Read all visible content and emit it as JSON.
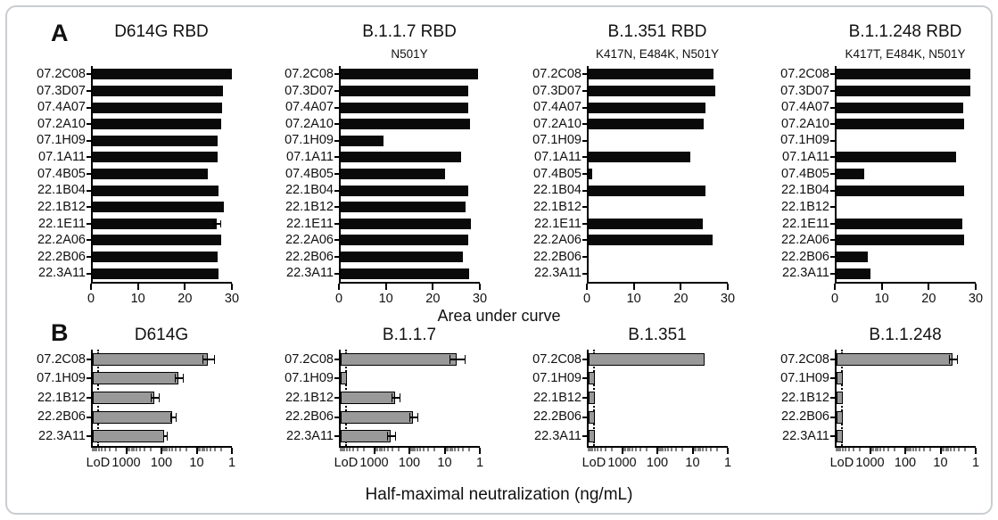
{
  "labels": {
    "panel_a": "A",
    "panel_b": "B"
  },
  "colors": {
    "bar_black": "#0a0a0a",
    "bar_gray": "#999999",
    "axis_black": "#000000",
    "card_border": "#c9cdd1",
    "background": "#ffffff"
  },
  "chart_data": [
    {
      "panel": "A",
      "type": "bar",
      "orientation": "horizontal",
      "xlabel": "Area under curve",
      "xlim": [
        0,
        30
      ],
      "xticks": [
        0,
        10,
        20,
        30
      ],
      "categories": [
        "07.2C08",
        "07.3D07",
        "07.4A07",
        "07.2A10",
        "07.1H09",
        "07.1A11",
        "07.4B05",
        "22.1B04",
        "22.1B12",
        "22.1E11",
        "22.2A06",
        "22.2B06",
        "22.3A11"
      ],
      "charts": [
        {
          "title": "D614G RBD",
          "subtitle": "",
          "values": [
            29.7,
            27.8,
            27.6,
            27.4,
            26.5,
            26.5,
            24.4,
            26.7,
            28.0,
            26.3,
            27.4,
            26.5,
            26.8
          ],
          "errors": [
            0,
            0,
            0,
            0,
            0,
            0,
            0,
            0,
            0,
            0.6,
            0,
            0,
            0
          ]
        },
        {
          "title": "B.1.1.7 RBD",
          "subtitle": "N501Y",
          "values": [
            29.3,
            27.2,
            27.2,
            27.5,
            9.1,
            25.6,
            22.3,
            27.2,
            26.6,
            27.7,
            27.2,
            26.1,
            27.4
          ],
          "errors": [
            0,
            0,
            0,
            0,
            0,
            0,
            0,
            0,
            0,
            0,
            0,
            0,
            0
          ]
        },
        {
          "title": "B.1.351 RBD",
          "subtitle": "K417N, E484K, N501Y",
          "values": [
            26.6,
            27.0,
            24.8,
            24.5,
            0,
            21.7,
            0.8,
            24.8,
            0,
            24.3,
            26.4,
            0,
            0
          ],
          "errors": [
            0,
            0,
            0,
            0,
            0,
            0,
            0,
            0,
            0,
            0,
            0,
            0,
            0
          ]
        },
        {
          "title": "B.1.1.248 RBD",
          "subtitle": "K417T, E484K, N501Y",
          "values": [
            28.4,
            28.4,
            27.0,
            27.2,
            0,
            25.4,
            5.9,
            27.1,
            0,
            26.8,
            27.1,
            6.6,
            7.3
          ],
          "errors": [
            0,
            0,
            0,
            0,
            0,
            0,
            0,
            0,
            0,
            0,
            0,
            0,
            0
          ]
        }
      ]
    },
    {
      "panel": "B",
      "type": "bar",
      "orientation": "horizontal",
      "scale": "log-reversed",
      "xlabel": "Half-maximal neutralization (ng/mL)",
      "axis_left_value": 10000,
      "axis_right_value": 1,
      "lod_value": 6500,
      "xticks": [
        {
          "label": "LoD",
          "pos": 0.05
        },
        {
          "label": "1000",
          "value": 1000
        },
        {
          "label": "100",
          "value": 100
        },
        {
          "label": "10",
          "value": 10
        },
        {
          "label": "1",
          "value": 1
        }
      ],
      "categories": [
        "07.2C08",
        "07.1H09",
        "22.1B12",
        "22.2B06",
        "22.3A11"
      ],
      "charts": [
        {
          "title": "D614G",
          "bars": [
            {
              "value": 5.5,
              "err_lo": 3.8,
              "err_hi": 7.5
            },
            {
              "value": 38,
              "err_lo": 30,
              "err_hi": 48
            },
            {
              "value": 180,
              "err_lo": 140,
              "err_hi": 230
            },
            {
              "value": 56,
              "err_lo": 48,
              "err_hi": 64
            },
            {
              "value": 92,
              "err_lo": 82,
              "err_hi": 102
            }
          ]
        },
        {
          "title": "B.1.1.7",
          "bars": [
            {
              "value": 5,
              "err_lo": 3.2,
              "err_hi": 8
            },
            {
              "value": null,
              "at_lod": true
            },
            {
              "value": 280,
              "err_lo": 220,
              "err_hi": 360
            },
            {
              "value": 88,
              "err_lo": 70,
              "err_hi": 110
            },
            {
              "value": 380,
              "err_lo": 300,
              "err_hi": 480
            }
          ]
        },
        {
          "title": "B.1.351",
          "bars": [
            {
              "value": 5
            },
            {
              "value": null,
              "at_lod": true
            },
            {
              "value": null,
              "at_lod": true
            },
            {
              "value": null,
              "at_lod": true
            },
            {
              "value": null,
              "at_lod": true
            }
          ]
        },
        {
          "title": "B.1.1.248",
          "bars": [
            {
              "value": 5,
              "err_lo": 4,
              "err_hi": 6.5
            },
            {
              "value": null,
              "at_lod": true
            },
            {
              "value": null,
              "at_lod": true
            },
            {
              "value": null,
              "at_lod": true
            },
            {
              "value": null,
              "at_lod": true
            }
          ]
        }
      ]
    }
  ]
}
